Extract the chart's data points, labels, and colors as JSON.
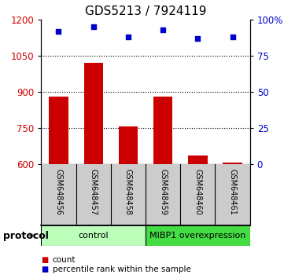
{
  "title": "GDS5213 / 7924119",
  "samples": [
    "GSM648456",
    "GSM648457",
    "GSM648458",
    "GSM648459",
    "GSM648460",
    "GSM648461"
  ],
  "counts": [
    880,
    1020,
    755,
    880,
    635,
    605
  ],
  "percentiles": [
    92,
    95,
    88,
    93,
    87,
    88
  ],
  "ylim_left": [
    600,
    1200
  ],
  "ylim_right": [
    0,
    100
  ],
  "yticks_left": [
    600,
    750,
    900,
    1050,
    1200
  ],
  "yticks_right": [
    0,
    25,
    50,
    75,
    100
  ],
  "ytick_labels_right": [
    "0",
    "25",
    "50",
    "75",
    "100%"
  ],
  "bar_color": "#cc0000",
  "dot_color": "#0000cc",
  "grid_lines": [
    750,
    900,
    1050
  ],
  "groups": [
    {
      "label": "control",
      "start": 0,
      "end": 3,
      "color": "#bbffbb"
    },
    {
      "label": "MIBP1 overexpression",
      "start": 3,
      "end": 6,
      "color": "#44dd44"
    }
  ],
  "protocol_label": "protocol",
  "legend_items": [
    {
      "label": "count",
      "color": "#cc0000"
    },
    {
      "label": "percentile rank within the sample",
      "color": "#0000cc"
    }
  ],
  "background_color": "#ffffff",
  "x_label_area_color": "#cccccc",
  "title_fontsize": 11,
  "tick_fontsize": 8.5,
  "label_fontsize": 8.5
}
